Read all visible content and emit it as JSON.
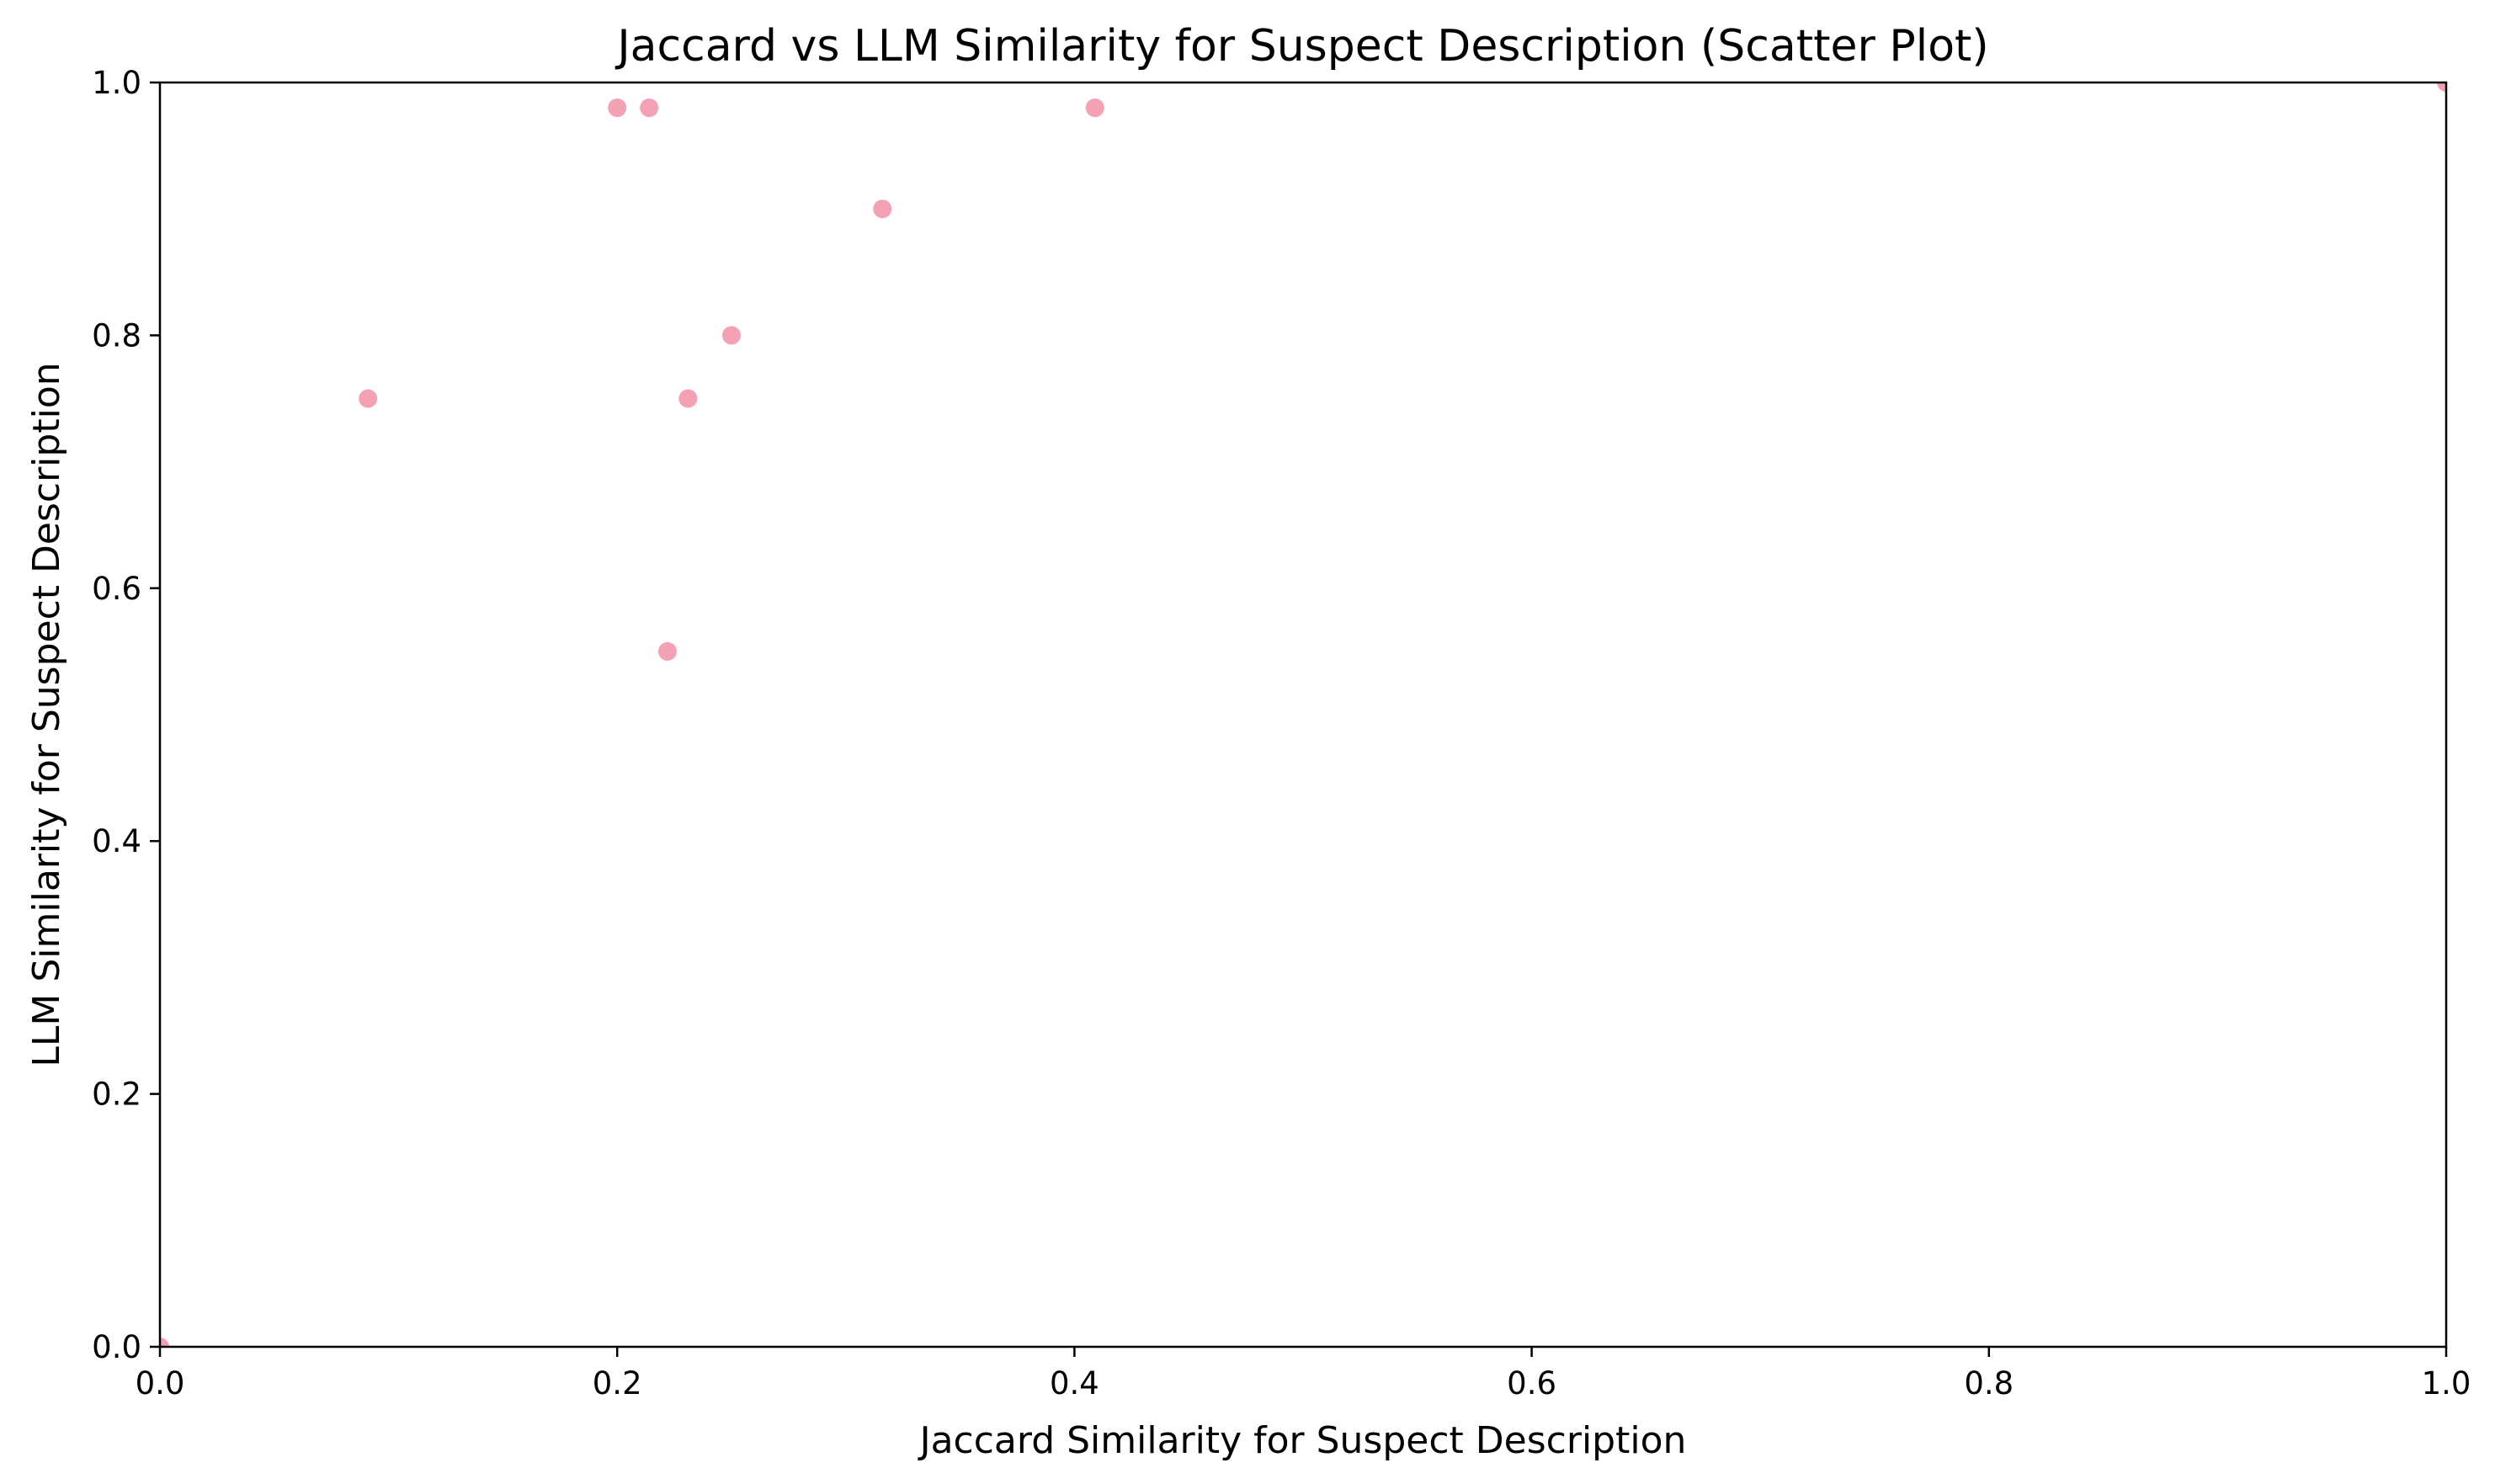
{
  "chart_data": {
    "type": "scatter",
    "title": "Jaccard vs LLM Similarity for Suspect Description (Scatter Plot)",
    "xlabel": "Jaccard Similarity for Suspect Description",
    "ylabel": "LLM Similarity for Suspect Description",
    "xlim": [
      0.0,
      1.0
    ],
    "ylim": [
      0.0,
      1.0
    ],
    "xticks": [
      "0.0",
      "0.2",
      "0.4",
      "0.6",
      "0.8",
      "1.0"
    ],
    "yticks": [
      "0.0",
      "0.2",
      "0.4",
      "0.6",
      "0.8",
      "1.0"
    ],
    "grid": false,
    "legend": "none",
    "marker_color": "#f4a0b5",
    "points": [
      {
        "x": 0.0,
        "y": 0.0
      },
      {
        "x": 0.091,
        "y": 0.75
      },
      {
        "x": 0.2,
        "y": 0.98
      },
      {
        "x": 0.214,
        "y": 0.98
      },
      {
        "x": 0.222,
        "y": 0.55
      },
      {
        "x": 0.231,
        "y": 0.75
      },
      {
        "x": 0.25,
        "y": 0.8
      },
      {
        "x": 0.316,
        "y": 0.9
      },
      {
        "x": 0.409,
        "y": 0.98
      },
      {
        "x": 1.0,
        "y": 1.0
      }
    ]
  }
}
